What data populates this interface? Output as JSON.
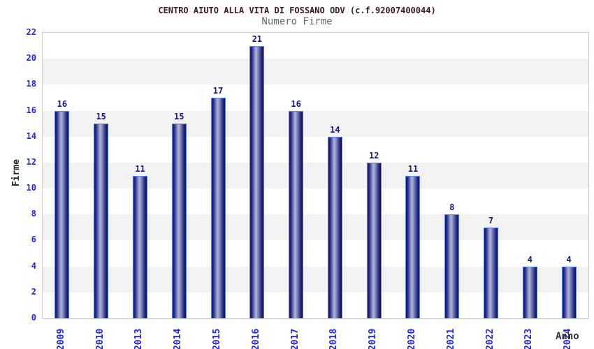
{
  "chart_data": {
    "type": "bar",
    "title": "CENTRO AIUTO ALLA VITA DI FOSSANO ODV (c.f.92007400044)",
    "subtitle": "Numero Firme",
    "xlabel": "Anno",
    "ylabel": "Firme",
    "categories": [
      "2009",
      "2010",
      "2013",
      "2014",
      "2015",
      "2016",
      "2017",
      "2018",
      "2019",
      "2020",
      "2021",
      "2022",
      "2023",
      "2024"
    ],
    "values": [
      16,
      15,
      11,
      15,
      17,
      21,
      16,
      14,
      12,
      11,
      8,
      7,
      4,
      4
    ],
    "ylim": [
      0,
      22
    ],
    "ytick_step": 2,
    "grid": "alternating-horizontal-bands",
    "legend": "none",
    "colors": {
      "title": "#3a1a1a",
      "subtitle": "#666666",
      "tick_label": "#2525cf",
      "value_label": "#181878",
      "axis_label": "#222222",
      "band_gray": "#f2f2f2",
      "band_white": "#ffffff",
      "plot_border": "#cccccc",
      "bar_border": "#5b86f2",
      "bar_dark": "#13135e",
      "bar_light": "#aab3d9"
    }
  }
}
